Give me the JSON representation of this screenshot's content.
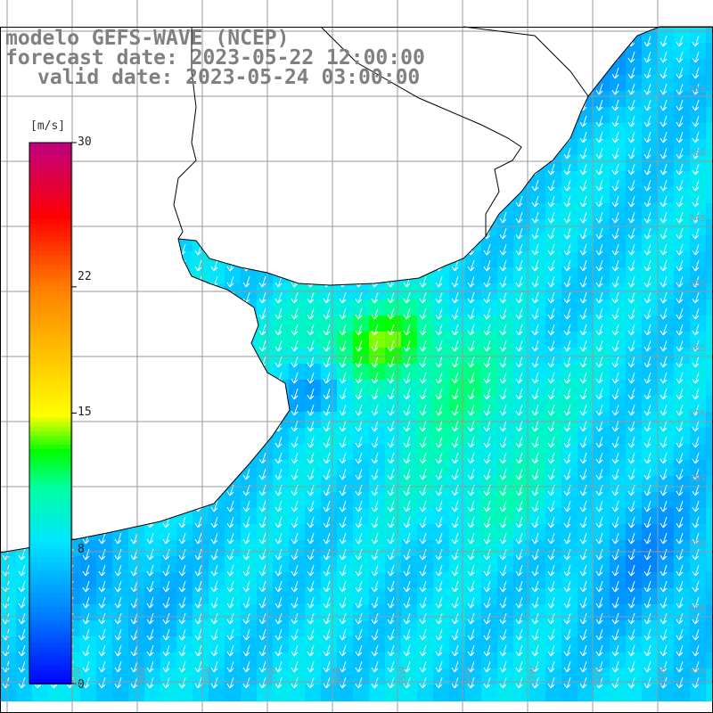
{
  "title": {
    "line1": "modelo GEFS-WAVE (NCEP)",
    "line2": "forecast date: 2023-05-22 12:00:00",
    "line3": "valid date: 2023-05-24 03:00:00"
  },
  "colorbar": {
    "unit": "[m/s]",
    "ticks": [
      "30",
      "22",
      "15",
      "8",
      "0"
    ],
    "min": 0,
    "max": 30,
    "colors": [
      "#0000ff",
      "#0080ff",
      "#00ffff",
      "#00ff00",
      "#ffff00",
      "#ff8000",
      "#ff0000",
      "#c0007f"
    ]
  },
  "map": {
    "variable": "wind speed",
    "units": "m/s",
    "land_color": "#ffffff",
    "grid_color": "#999999",
    "coastline_color": "#000000",
    "arrow_color": "#ffffff",
    "arrow_direction": "south-southwest",
    "lat_labels": [
      "31S",
      "33S",
      "34S",
      "35S",
      "36S",
      "37S",
      "38S",
      "39S",
      "40S",
      "41S"
    ],
    "lon_labels": [
      "60W",
      "59W",
      "58W",
      "57W",
      "56W",
      "55W",
      "54W",
      "53W",
      "52W",
      "51W"
    ]
  }
}
